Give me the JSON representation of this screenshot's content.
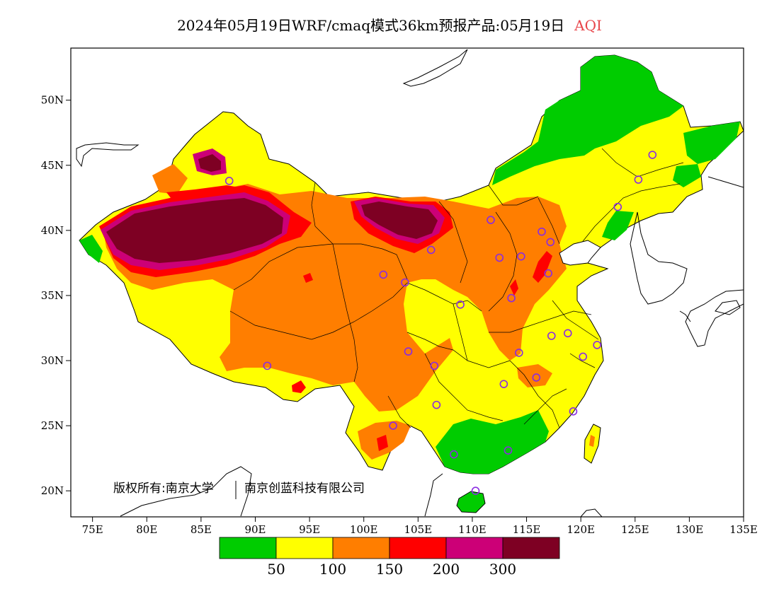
{
  "title": {
    "main": "2024年05月19日WRF/cmaq模式36km预报产品:05月19日",
    "variable": "AQI"
  },
  "map": {
    "lon_ticks": [
      "75E",
      "80E",
      "85E",
      "90E",
      "95E",
      "100E",
      "105E",
      "110E",
      "115E",
      "120E",
      "125E",
      "130E",
      "135E"
    ],
    "lat_ticks": [
      "20N",
      "25N",
      "30N",
      "35N",
      "40N",
      "45N",
      "50N"
    ],
    "copyright_left": "版权所有:南京大学",
    "copyright_right": "南京创蓝科技有限公司",
    "stations": [
      {
        "lon": 87.6,
        "lat": 43.8
      },
      {
        "lon": 91.1,
        "lat": 29.6
      },
      {
        "lon": 101.8,
        "lat": 36.6
      },
      {
        "lon": 103.8,
        "lat": 36.0
      },
      {
        "lon": 106.2,
        "lat": 38.5
      },
      {
        "lon": 111.7,
        "lat": 40.8
      },
      {
        "lon": 112.5,
        "lat": 37.9
      },
      {
        "lon": 114.5,
        "lat": 38.0
      },
      {
        "lon": 116.4,
        "lat": 39.9
      },
      {
        "lon": 117.2,
        "lat": 39.1
      },
      {
        "lon": 117.0,
        "lat": 36.7
      },
      {
        "lon": 113.6,
        "lat": 34.8
      },
      {
        "lon": 108.9,
        "lat": 34.3
      },
      {
        "lon": 104.1,
        "lat": 30.7
      },
      {
        "lon": 106.5,
        "lat": 29.6
      },
      {
        "lon": 106.7,
        "lat": 26.6
      },
      {
        "lon": 102.7,
        "lat": 25.0
      },
      {
        "lon": 108.3,
        "lat": 22.8
      },
      {
        "lon": 113.3,
        "lat": 23.1
      },
      {
        "lon": 110.3,
        "lat": 20.0
      },
      {
        "lon": 112.9,
        "lat": 28.2
      },
      {
        "lon": 115.9,
        "lat": 28.7
      },
      {
        "lon": 114.3,
        "lat": 30.6
      },
      {
        "lon": 117.3,
        "lat": 31.9
      },
      {
        "lon": 118.8,
        "lat": 32.1
      },
      {
        "lon": 120.2,
        "lat": 30.3
      },
      {
        "lon": 121.5,
        "lat": 31.2
      },
      {
        "lon": 119.3,
        "lat": 26.1
      },
      {
        "lon": 123.4,
        "lat": 41.8
      },
      {
        "lon": 125.3,
        "lat": 43.9
      },
      {
        "lon": 126.6,
        "lat": 45.8
      }
    ]
  },
  "legend": {
    "thresholds": [
      "50",
      "100",
      "150",
      "200",
      "300"
    ],
    "colors": [
      "#00cc00",
      "#ffff00",
      "#ff7e00",
      "#ff0000",
      "#cc0077",
      "#7e0023"
    ]
  }
}
